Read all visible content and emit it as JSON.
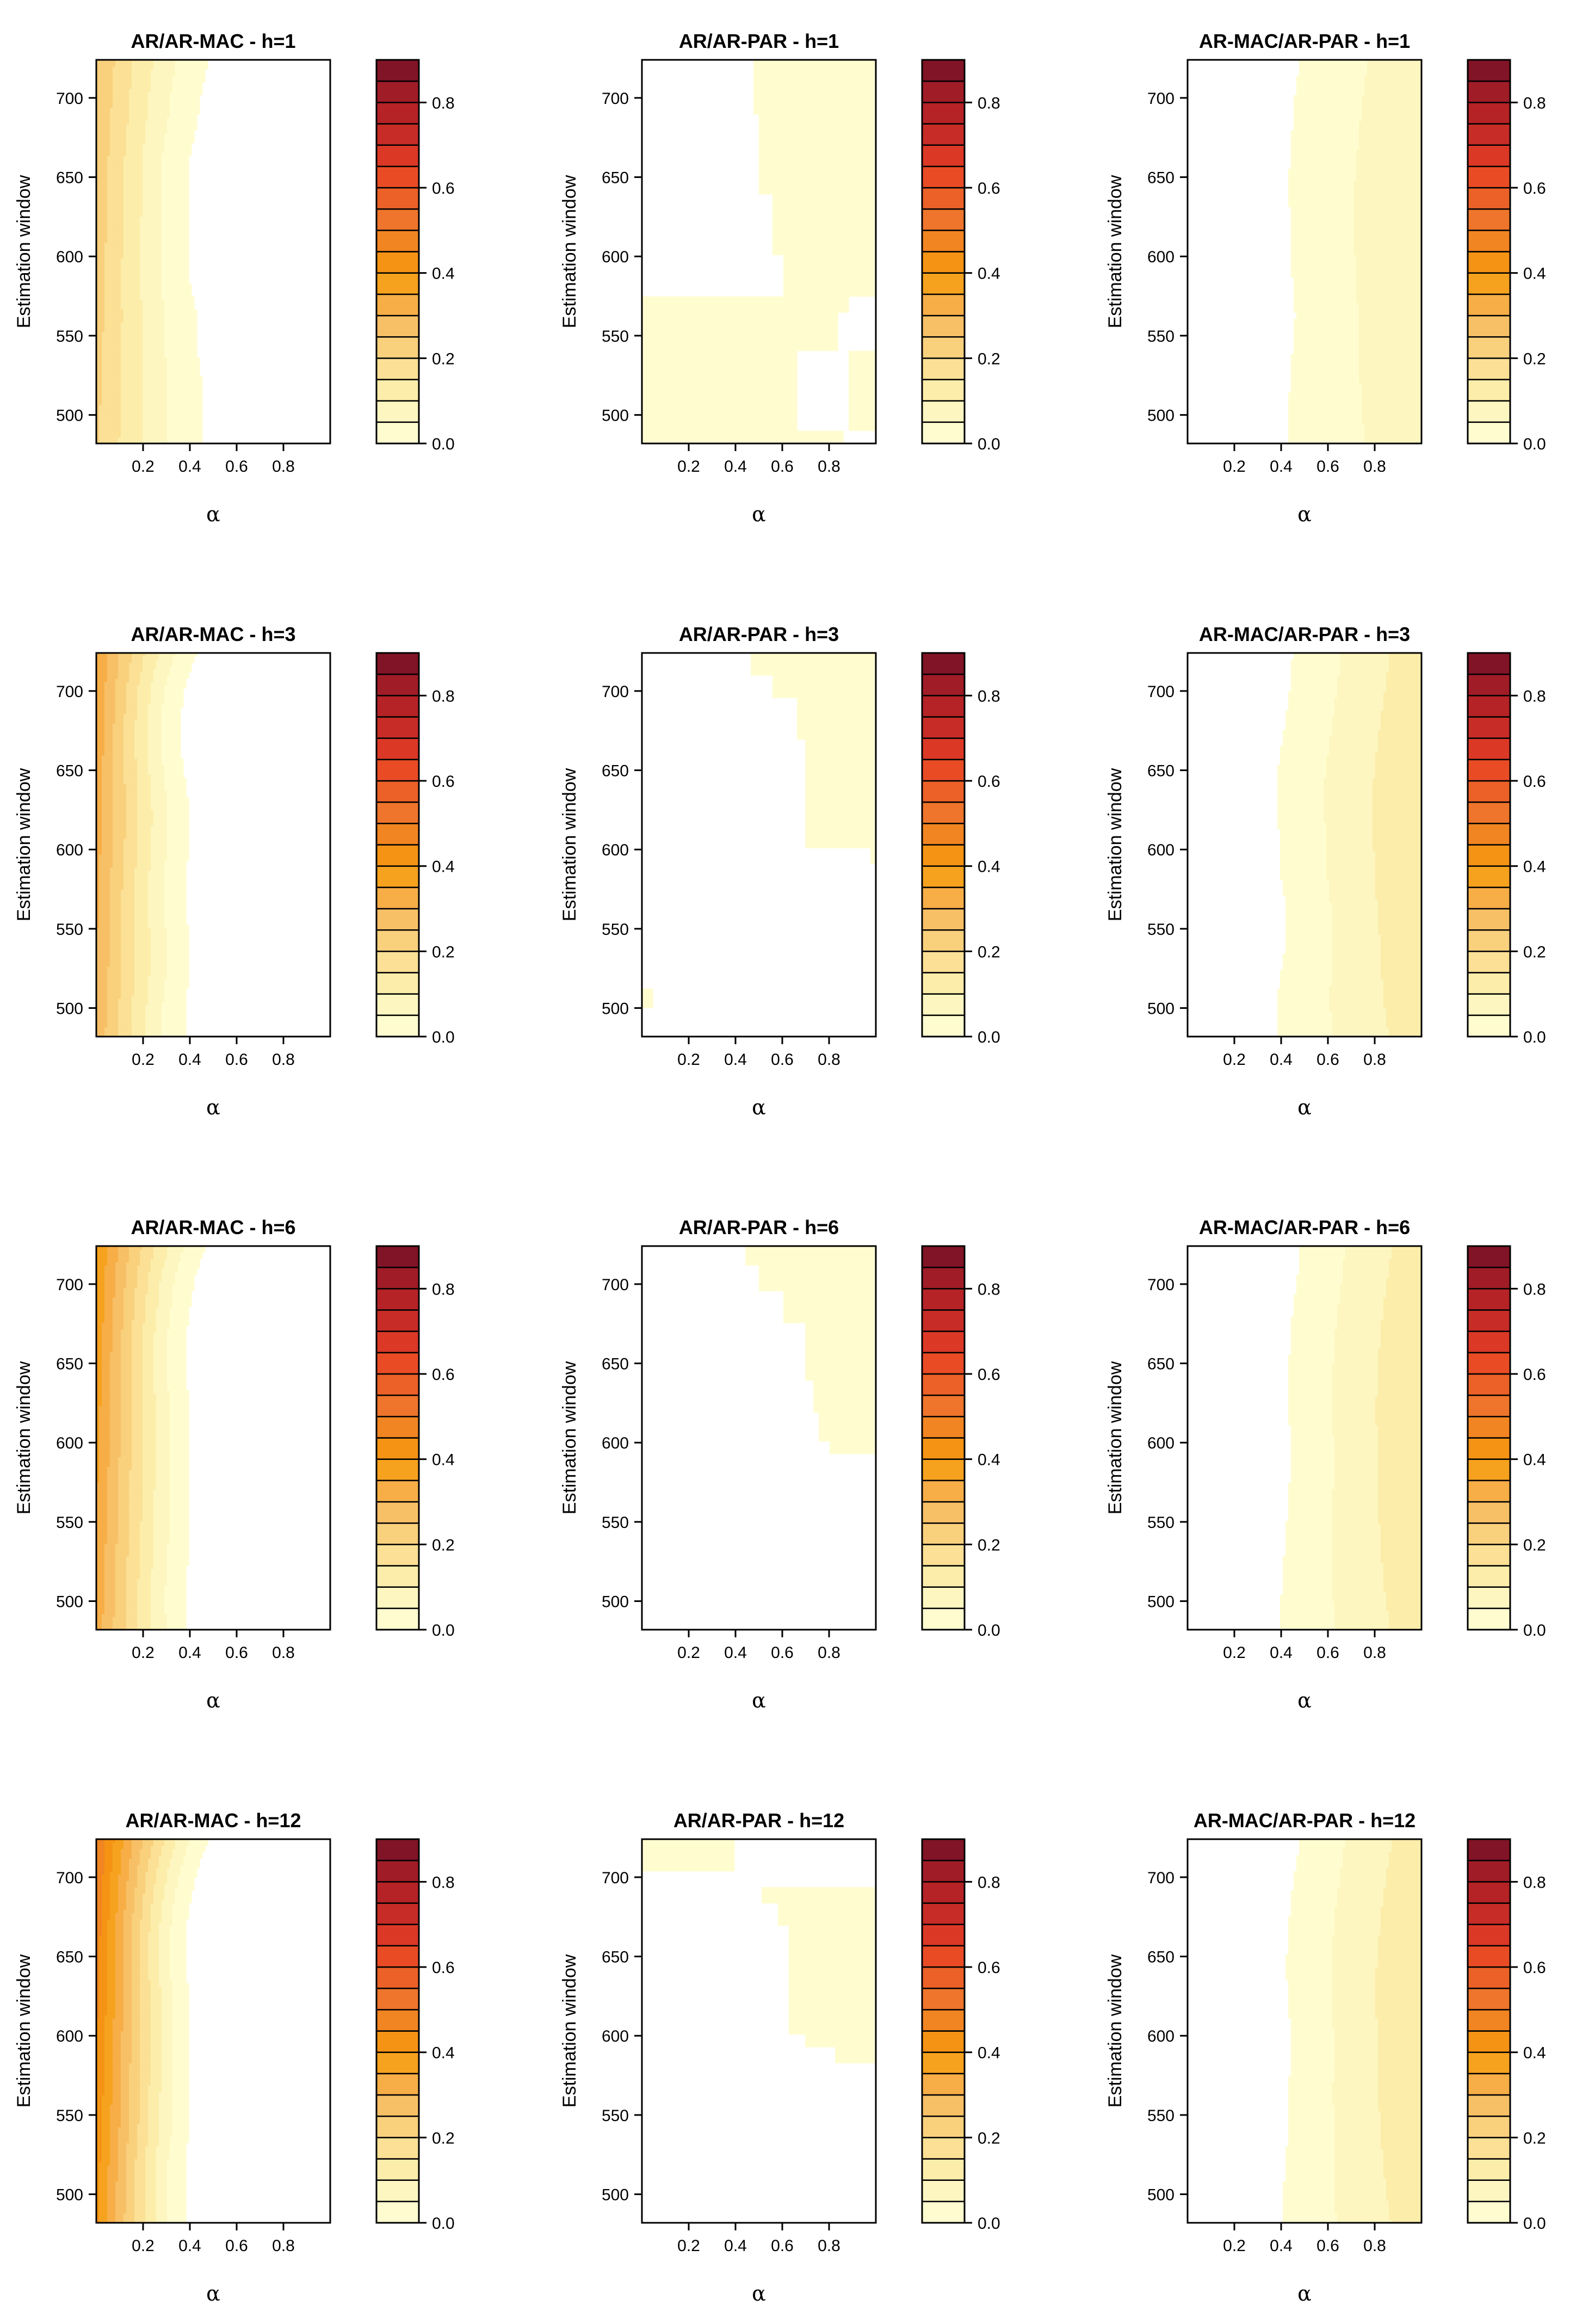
{
  "figure": {
    "alpha_symbol": "α",
    "y_axis_label": "Estimation window",
    "x_ticks": [
      "0.2",
      "0.4",
      "0.6",
      "0.8"
    ],
    "x_tick_values": [
      0.2,
      0.4,
      0.6,
      0.8
    ],
    "y_ticks": [
      "500",
      "550",
      "600",
      "650",
      "700"
    ],
    "y_tick_values": [
      500,
      550,
      600,
      650,
      700
    ],
    "colorbar_ticks": [
      "0.0",
      "0.2",
      "0.4",
      "0.6",
      "0.8"
    ],
    "colorbar_tick_values": [
      0.0,
      0.2,
      0.4,
      0.6,
      0.8
    ],
    "colorbar_levels": [
      0.0,
      0.05,
      0.1,
      0.15,
      0.2,
      0.25,
      0.3,
      0.35,
      0.4,
      0.45,
      0.5,
      0.55,
      0.6,
      0.65,
      0.7,
      0.75,
      0.8,
      0.85,
      0.9
    ],
    "colorbar_colors": [
      "#FFFDD0",
      "#FDF6C0",
      "#FCEDAA",
      "#FBE095",
      "#F9D07C",
      "#F8C066",
      "#F7AE47",
      "#F6A21E",
      "#F59314",
      "#F18522",
      "#EE752B",
      "#EB6128",
      "#E94C25",
      "#DB3826",
      "#C72C26",
      "#B52326",
      "#A01C27",
      "#811426"
    ]
  },
  "chart_data": [
    {
      "type": "heatmap",
      "title": "AR/AR-MAC - h=1",
      "xlabel": "α",
      "ylabel": "Estimation window",
      "xlim": [
        0,
        1
      ],
      "ylim": [
        482,
        724
      ],
      "zlim": [
        0,
        0.9
      ],
      "zero_boundary_alpha": [
        0.45,
        0.45,
        0.45,
        0.43,
        0.43,
        0.4,
        0.4,
        0.4,
        0.4,
        0.4,
        0.43,
        0.45,
        0.48
      ],
      "max_value_at_alpha0": 0.25
    },
    {
      "type": "heatmap",
      "title": "AR/AR-PAR - h=1",
      "xlabel": "α",
      "ylabel": "Estimation window",
      "xlim": [
        0,
        1
      ],
      "ylim": [
        482,
        724
      ],
      "zlim": [
        0,
        0.9
      ],
      "nonzero_region": "alpha > ~0.5 for windows 575-724; all alpha below window 575 except a notch at alpha 0.65-0.85, windows 490-540",
      "max_value_at_alpha0": 0.05
    },
    {
      "type": "heatmap",
      "title": "AR-MAC/AR-PAR - h=1",
      "xlabel": "α",
      "ylabel": "Estimation window",
      "xlim": [
        0,
        1
      ],
      "ylim": [
        482,
        724
      ],
      "zlim": [
        0,
        0.9
      ],
      "zero_boundary_alpha": [
        0.43,
        0.43,
        0.44,
        0.45,
        0.46,
        0.45,
        0.44,
        0.44,
        0.43,
        0.44,
        0.45,
        0.46,
        0.48
      ],
      "max_value_at_alpha1": 0.1
    },
    {
      "type": "heatmap",
      "title": "AR/AR-MAC - h=3",
      "xlabel": "α",
      "ylabel": "Estimation window",
      "xlim": [
        0,
        1
      ],
      "ylim": [
        482,
        724
      ],
      "zlim": [
        0,
        0.9
      ],
      "zero_boundary_alpha": [
        0.38,
        0.38,
        0.4,
        0.4,
        0.38,
        0.38,
        0.4,
        0.4,
        0.38,
        0.36,
        0.36,
        0.38,
        0.43
      ],
      "max_value_at_alpha0": 0.35
    },
    {
      "type": "heatmap",
      "title": "AR/AR-PAR - h=3",
      "xlabel": "α",
      "ylabel": "Estimation window",
      "xlim": [
        0,
        1
      ],
      "ylim": [
        482,
        724
      ],
      "zlim": [
        0,
        0.9
      ],
      "nonzero_region": "upper right: alpha > ~0.5 for windows 590-724, plus small patch near alpha 0.02, window 505",
      "max_value_at_alpha1": 0.05
    },
    {
      "type": "heatmap",
      "title": "AR-MAC/AR-PAR - h=3",
      "xlabel": "α",
      "ylabel": "Estimation window",
      "xlim": [
        0,
        1
      ],
      "ylim": [
        482,
        724
      ],
      "zlim": [
        0,
        0.9
      ],
      "zero_boundary_alpha": [
        0.38,
        0.38,
        0.4,
        0.42,
        0.42,
        0.4,
        0.4,
        0.38,
        0.38,
        0.4,
        0.42,
        0.44,
        0.45
      ],
      "max_value_at_alpha1": 0.15
    },
    {
      "type": "heatmap",
      "title": "AR/AR-MAC - h=6",
      "xlabel": "α",
      "ylabel": "Estimation window",
      "xlim": [
        0,
        1
      ],
      "ylim": [
        482,
        724
      ],
      "zlim": [
        0,
        0.9
      ],
      "zero_boundary_alpha": [
        0.39,
        0.38,
        0.39,
        0.4,
        0.4,
        0.4,
        0.4,
        0.4,
        0.38,
        0.38,
        0.4,
        0.42,
        0.47
      ],
      "max_value_at_alpha0": 0.4
    },
    {
      "type": "heatmap",
      "title": "AR/AR-PAR - h=6",
      "xlabel": "α",
      "ylabel": "Estimation window",
      "xlim": [
        0,
        1
      ],
      "ylim": [
        482,
        724
      ],
      "zlim": [
        0,
        0.9
      ],
      "nonzero_region": "upper right: alpha > ~0.45 for windows 590-724",
      "max_value_at_alpha1": 0.05
    },
    {
      "type": "heatmap",
      "title": "AR-MAC/AR-PAR - h=6",
      "xlabel": "α",
      "ylabel": "Estimation window",
      "xlim": [
        0,
        1
      ],
      "ylim": [
        482,
        724
      ],
      "zlim": [
        0,
        0.9
      ],
      "zero_boundary_alpha": [
        0.4,
        0.4,
        0.41,
        0.42,
        0.43,
        0.44,
        0.44,
        0.43,
        0.43,
        0.44,
        0.45,
        0.47,
        0.48
      ],
      "max_value_at_alpha1": 0.15
    },
    {
      "type": "heatmap",
      "title": "AR/AR-MAC - h=12",
      "xlabel": "α",
      "ylabel": "Estimation window",
      "xlim": [
        0,
        1
      ],
      "ylim": [
        482,
        724
      ],
      "zlim": [
        0,
        0.9
      ],
      "zero_boundary_alpha": [
        0.38,
        0.38,
        0.38,
        0.4,
        0.4,
        0.4,
        0.4,
        0.4,
        0.38,
        0.38,
        0.4,
        0.43,
        0.48
      ],
      "max_value_at_alpha0": 0.5
    },
    {
      "type": "heatmap",
      "title": "AR/AR-PAR - h=12",
      "xlabel": "α",
      "ylabel": "Estimation window",
      "xlim": [
        0,
        1
      ],
      "ylim": [
        482,
        724
      ],
      "zlim": [
        0,
        0.9
      ],
      "nonzero_region": "top-left strip alpha 0-0.38, windows 703-724; right region alpha > ~0.5 for windows 582-693",
      "max_value_at_alpha1": 0.05
    },
    {
      "type": "heatmap",
      "title": "AR-MAC/AR-PAR - h=12",
      "xlabel": "α",
      "ylabel": "Estimation window",
      "xlim": [
        0,
        1
      ],
      "ylim": [
        482,
        724
      ],
      "zlim": [
        0,
        0.9
      ],
      "zero_boundary_alpha": [
        0.41,
        0.41,
        0.42,
        0.43,
        0.43,
        0.44,
        0.44,
        0.43,
        0.42,
        0.43,
        0.44,
        0.46,
        0.48
      ],
      "max_value_at_alpha1": 0.15
    }
  ]
}
